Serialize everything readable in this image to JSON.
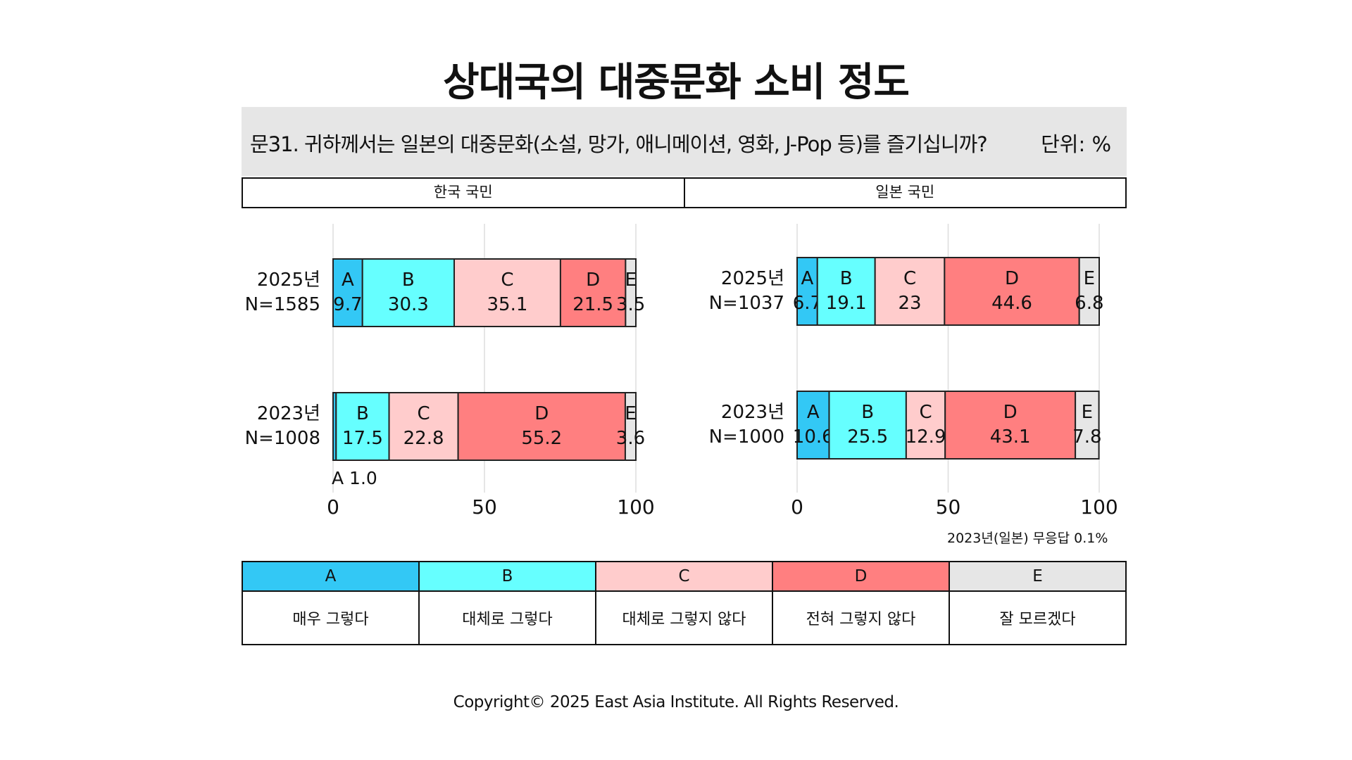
{
  "title": "상대국의 대중문화 소비 정도",
  "question": "문31. 귀하께서는 일본의 대중문화(소설, 망가, 애니메이션, 영화, J-Pop 등)를 즐기십니까?",
  "unit": "단위: %",
  "groups": [
    "한국 국민",
    "일본 국민"
  ],
  "note": "2023년(일본) 무응답 0.1%",
  "copyright": "Copyright© 2025 East Asia Institute. All Rights Reserved.",
  "legend": {
    "keys": [
      "A",
      "B",
      "C",
      "D",
      "E"
    ],
    "descriptions": [
      "매우 그렇다",
      "대체로 그렇다",
      "대체로 그렇지 않다",
      "전혀 그렇지 않다",
      "잘 모르겠다"
    ]
  },
  "colors": {
    "A": "#33c8f5",
    "B": "#66ffff",
    "C": "#ffcccc",
    "D": "#ff7f80",
    "E": "#e6e6e6"
  },
  "chart_data": [
    {
      "type": "bar",
      "orientation": "horizontal",
      "stacked": true,
      "panel": "한국 국민",
      "categories": [
        "A",
        "B",
        "C",
        "D",
        "E"
      ],
      "xlim": [
        0,
        100
      ],
      "xticks": [
        "0",
        "50",
        "100"
      ],
      "rows": [
        {
          "year": "2025년",
          "n": "N=1585",
          "values": [
            9.7,
            30.3,
            35.1,
            21.5,
            3.5
          ],
          "labels": [
            "9.7",
            "30.3",
            "35.1",
            "21.5",
            "3.5"
          ],
          "external_label": ""
        },
        {
          "year": "2023년",
          "n": "N=1008",
          "values": [
            1.0,
            17.5,
            22.8,
            55.2,
            3.6
          ],
          "labels": [
            "",
            "17.5",
            "22.8",
            "55.2",
            "3.6"
          ],
          "external_label": "A 1.0"
        }
      ]
    },
    {
      "type": "bar",
      "orientation": "horizontal",
      "stacked": true,
      "panel": "일본 국민",
      "categories": [
        "A",
        "B",
        "C",
        "D",
        "E"
      ],
      "xlim": [
        0,
        100
      ],
      "xticks": [
        "0",
        "50",
        "100"
      ],
      "rows": [
        {
          "year": "2025년",
          "n": "N=1037",
          "values": [
            6.7,
            19.1,
            23,
            44.6,
            6.8
          ],
          "labels": [
            "6.7",
            "19.1",
            "23",
            "44.6",
            "6.8"
          ],
          "external_label": ""
        },
        {
          "year": "2023년",
          "n": "N=1000",
          "values": [
            10.6,
            25.5,
            12.9,
            43.1,
            7.8
          ],
          "labels": [
            "10.6",
            "25.5",
            "12.9",
            "43.1",
            "7.8"
          ],
          "external_label": ""
        }
      ]
    }
  ]
}
